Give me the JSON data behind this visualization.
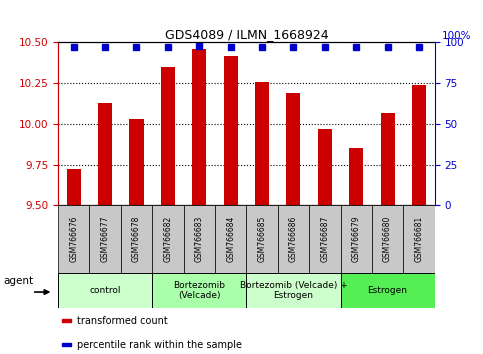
{
  "title": "GDS4089 / ILMN_1668924",
  "samples": [
    "GSM766676",
    "GSM766677",
    "GSM766678",
    "GSM766682",
    "GSM766683",
    "GSM766684",
    "GSM766685",
    "GSM766686",
    "GSM766687",
    "GSM766679",
    "GSM766680",
    "GSM766681"
  ],
  "bar_values": [
    9.72,
    10.13,
    10.03,
    10.35,
    10.46,
    10.42,
    10.26,
    10.19,
    9.97,
    9.85,
    10.07,
    10.24
  ],
  "percentile_values": [
    97,
    97,
    97,
    97,
    98,
    97,
    97,
    97,
    97,
    97,
    97,
    97
  ],
  "bar_color": "#cc0000",
  "dot_color": "#0000cc",
  "ylim_left": [
    9.5,
    10.5
  ],
  "ylim_right": [
    0,
    100
  ],
  "yticks_left": [
    9.5,
    9.75,
    10.0,
    10.25,
    10.5
  ],
  "yticks_right": [
    0,
    25,
    50,
    75,
    100
  ],
  "groups": [
    {
      "label": "control",
      "start": 0,
      "end": 3,
      "color": "#ccffcc"
    },
    {
      "label": "Bortezomib\n(Velcade)",
      "start": 3,
      "end": 6,
      "color": "#aaffaa"
    },
    {
      "label": "Bortezomib (Velcade) +\nEstrogen",
      "start": 6,
      "end": 9,
      "color": "#ccffcc"
    },
    {
      "label": "Estrogen",
      "start": 9,
      "end": 12,
      "color": "#55ee55"
    }
  ],
  "legend_items": [
    {
      "color": "#cc0000",
      "label": "transformed count"
    },
    {
      "color": "#0000cc",
      "label": "percentile rank within the sample"
    }
  ],
  "agent_label": "agent",
  "bar_width": 0.45,
  "sample_box_color": "#c8c8c8",
  "left_axis_color": "#cc0000",
  "right_axis_color": "#0000cc"
}
